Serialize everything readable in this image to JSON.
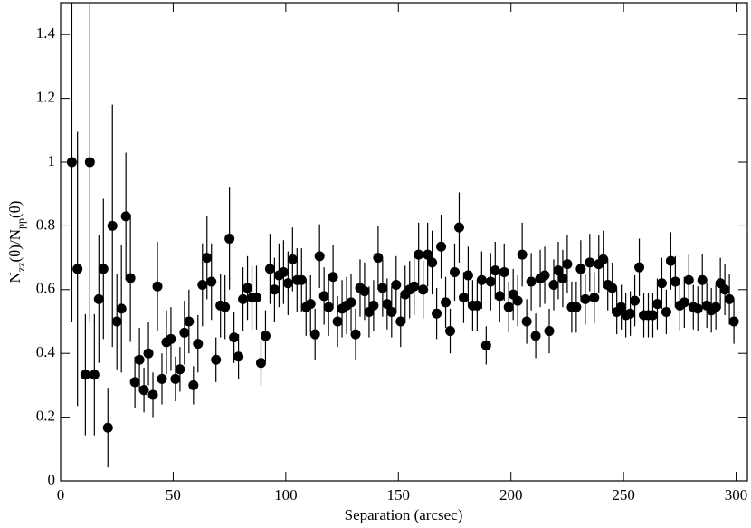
{
  "chart_data": {
    "type": "scatter",
    "x_label": "Separation (arcsec)",
    "y_label_parts": [
      "N",
      "zz",
      "(θ)/N",
      "pp",
      "(θ)"
    ],
    "xlim": [
      0,
      305
    ],
    "ylim": [
      0,
      1.5
    ],
    "xticks": [
      0,
      50,
      100,
      150,
      200,
      250,
      300
    ],
    "yticks": [
      0,
      0.2,
      0.4,
      0.6,
      0.8,
      1,
      1.2,
      1.4
    ],
    "color": "#000000",
    "x": [
      5,
      7.5,
      11,
      13,
      15,
      17,
      19,
      21,
      23,
      25,
      27,
      29,
      31,
      33,
      35,
      37,
      39,
      41,
      43,
      45,
      47,
      49,
      51,
      53,
      55,
      57,
      59,
      61,
      63,
      65,
      67,
      69,
      71,
      73,
      75,
      77,
      79,
      81,
      83,
      85,
      87,
      89,
      91,
      93,
      95,
      97,
      99,
      101,
      103,
      105,
      107,
      109,
      111,
      113,
      115,
      117,
      119,
      121,
      123,
      125,
      127,
      129,
      131,
      133,
      135,
      137,
      139,
      141,
      143,
      145,
      147,
      149,
      151,
      153,
      155,
      157,
      159,
      161,
      163,
      165,
      167,
      169,
      171,
      173,
      175,
      177,
      179,
      181,
      183,
      185,
      187,
      189,
      191,
      193,
      195,
      197,
      199,
      201,
      203,
      205,
      207,
      209,
      211,
      213,
      215,
      217,
      219,
      221,
      223,
      225,
      227,
      229,
      231,
      233,
      235,
      237,
      239,
      241,
      243,
      245,
      247,
      249,
      251,
      253,
      255,
      257,
      259,
      261,
      263,
      265,
      267,
      269,
      271,
      273,
      275,
      277,
      279,
      281,
      283,
      285,
      287,
      289,
      291,
      293,
      295,
      297,
      299
    ],
    "values": [
      1.0,
      0.665,
      0.333,
      1.0,
      0.333,
      0.57,
      0.665,
      0.167,
      0.8,
      0.5,
      0.54,
      0.83,
      0.636,
      0.31,
      0.38,
      0.285,
      0.4,
      0.27,
      0.61,
      0.32,
      0.435,
      0.445,
      0.32,
      0.35,
      0.465,
      0.5,
      0.3,
      0.43,
      0.615,
      0.7,
      0.625,
      0.38,
      0.55,
      0.545,
      0.76,
      0.45,
      0.39,
      0.57,
      0.605,
      0.575,
      0.575,
      0.37,
      0.455,
      0.665,
      0.6,
      0.645,
      0.655,
      0.62,
      0.695,
      0.63,
      0.63,
      0.545,
      0.555,
      0.46,
      0.705,
      0.58,
      0.545,
      0.64,
      0.5,
      0.54,
      0.55,
      0.56,
      0.46,
      0.605,
      0.595,
      0.53,
      0.55,
      0.7,
      0.605,
      0.555,
      0.53,
      0.615,
      0.5,
      0.585,
      0.6,
      0.61,
      0.71,
      0.6,
      0.71,
      0.685,
      0.525,
      0.735,
      0.56,
      0.47,
      0.655,
      0.795,
      0.575,
      0.645,
      0.55,
      0.55,
      0.63,
      0.425,
      0.625,
      0.66,
      0.58,
      0.655,
      0.545,
      0.585,
      0.565,
      0.71,
      0.5,
      0.625,
      0.455,
      0.635,
      0.645,
      0.47,
      0.615,
      0.66,
      0.635,
      0.68,
      0.545,
      0.545,
      0.665,
      0.57,
      0.685,
      0.575,
      0.68,
      0.695,
      0.615,
      0.605,
      0.53,
      0.545,
      0.52,
      0.525,
      0.565,
      0.67,
      0.52,
      0.52,
      0.52,
      0.555,
      0.62,
      0.53,
      0.69,
      0.625,
      0.55,
      0.56,
      0.63,
      0.545,
      0.54,
      0.63,
      0.55,
      0.535,
      0.545,
      0.62,
      0.6,
      0.57,
      0.5
    ],
    "errors": [
      0.5,
      0.43,
      0.19,
      0.5,
      0.19,
      0.2,
      0.22,
      0.125,
      0.38,
      0.15,
      0.2,
      0.2,
      0.2,
      0.08,
      0.1,
      0.07,
      0.1,
      0.07,
      0.14,
      0.08,
      0.1,
      0.1,
      0.07,
      0.07,
      0.1,
      0.1,
      0.06,
      0.09,
      0.13,
      0.13,
      0.12,
      0.07,
      0.1,
      0.1,
      0.16,
      0.08,
      0.07,
      0.1,
      0.1,
      0.1,
      0.1,
      0.07,
      0.08,
      0.11,
      0.1,
      0.1,
      0.1,
      0.1,
      0.1,
      0.1,
      0.1,
      0.09,
      0.09,
      0.08,
      0.1,
      0.09,
      0.09,
      0.1,
      0.08,
      0.09,
      0.09,
      0.09,
      0.08,
      0.09,
      0.09,
      0.08,
      0.08,
      0.1,
      0.09,
      0.08,
      0.08,
      0.09,
      0.08,
      0.09,
      0.09,
      0.09,
      0.1,
      0.09,
      0.1,
      0.1,
      0.08,
      0.1,
      0.08,
      0.07,
      0.09,
      0.11,
      0.08,
      0.09,
      0.08,
      0.08,
      0.09,
      0.06,
      0.09,
      0.09,
      0.08,
      0.09,
      0.08,
      0.08,
      0.08,
      0.1,
      0.07,
      0.09,
      0.07,
      0.09,
      0.09,
      0.07,
      0.08,
      0.09,
      0.09,
      0.09,
      0.08,
      0.08,
      0.09,
      0.08,
      0.09,
      0.08,
      0.09,
      0.09,
      0.08,
      0.08,
      0.07,
      0.07,
      0.07,
      0.07,
      0.08,
      0.09,
      0.07,
      0.07,
      0.07,
      0.08,
      0.08,
      0.07,
      0.09,
      0.08,
      0.08,
      0.08,
      0.08,
      0.07,
      0.07,
      0.08,
      0.07,
      0.07,
      0.07,
      0.08,
      0.08,
      0.08,
      0.07
    ]
  }
}
